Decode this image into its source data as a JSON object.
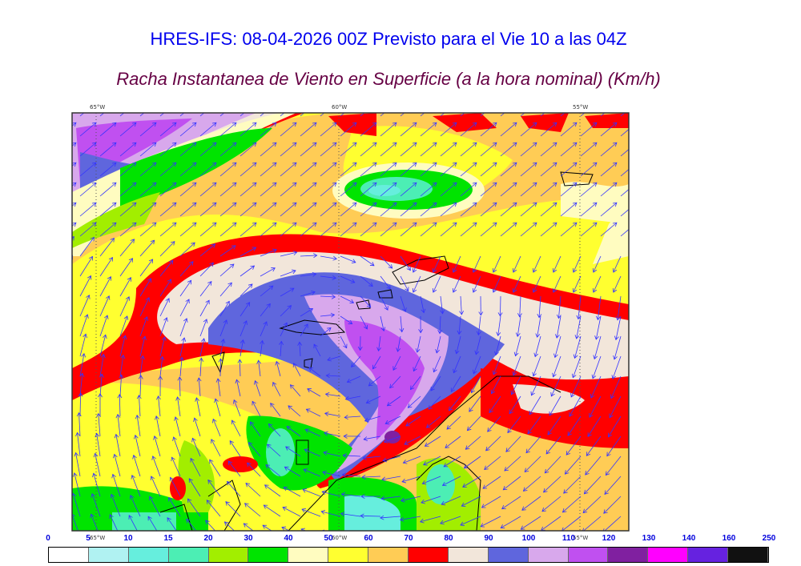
{
  "title": "HRES-IFS: 08-04-2026 00Z Previsto para el Vie 10 a las 04Z",
  "subtitle": "Racha Instantanea de Viento en Superficie (a la hora nominal) (Km/h)",
  "longitude_labels": [
    "65°W",
    "60°W",
    "55°W"
  ],
  "colorbar": {
    "ticks": [
      "0",
      "5",
      "10",
      "15",
      "20",
      "30",
      "40",
      "50",
      "60",
      "70",
      "80",
      "90",
      "100",
      "110",
      "120",
      "130",
      "140",
      "160",
      "250"
    ],
    "colors": [
      "#ffffff",
      "#b0f2f2",
      "#66eedd",
      "#4ceeb4",
      "#a2ee00",
      "#00e400",
      "#fffcc0",
      "#ffff30",
      "#ffcc55",
      "#ff0000",
      "#f2e6da",
      "#5f66dd",
      "#d8a8ec",
      "#c050f0",
      "#8020a0",
      "#ff00ff",
      "#6622e0",
      "#111111"
    ]
  },
  "vector_color": "#3333ff"
}
